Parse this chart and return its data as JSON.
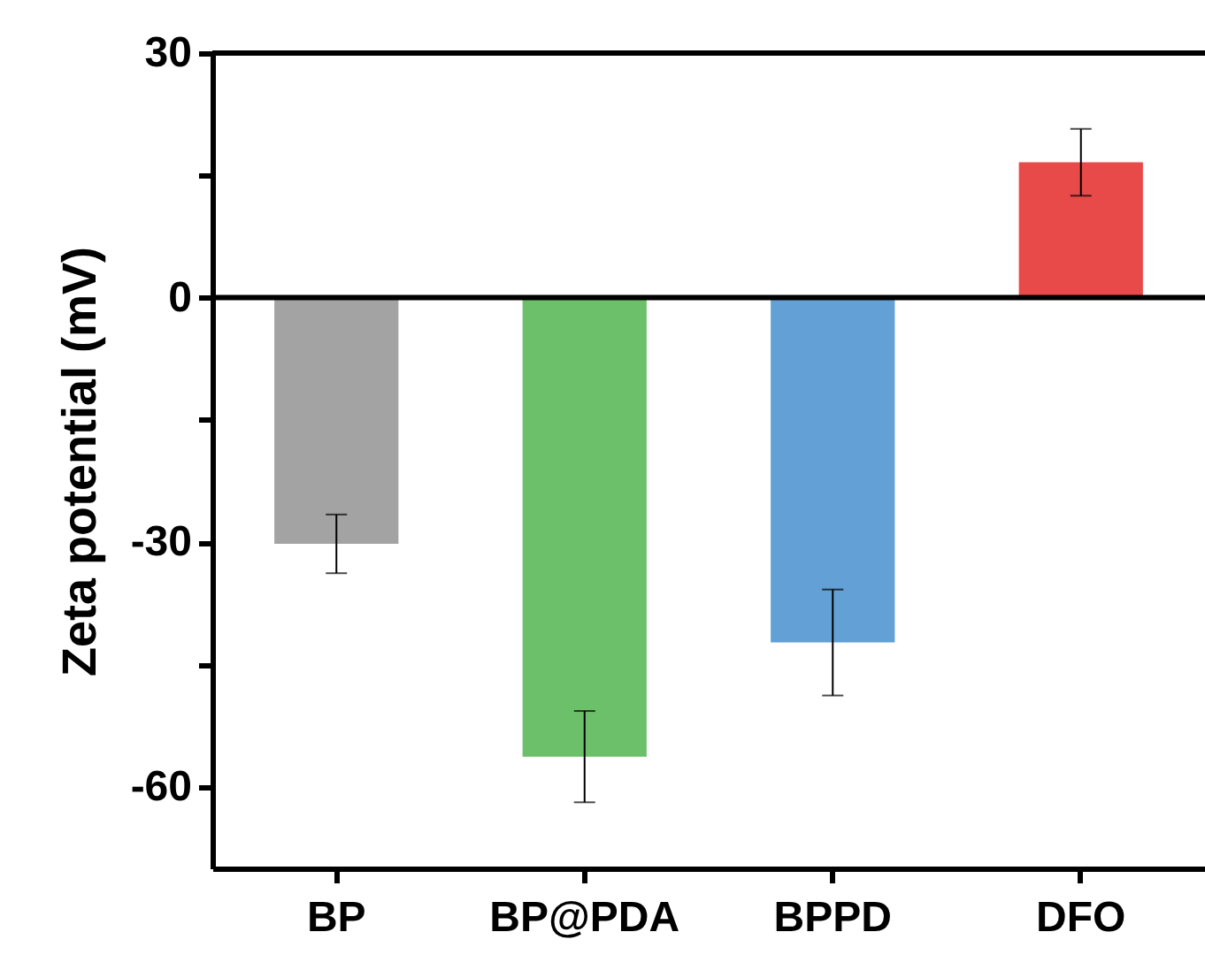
{
  "chart_data": {
    "type": "bar",
    "ylabel": "Zeta potential (mV)",
    "categories": [
      "BP",
      "BP@PDA",
      "BPPD",
      "DFO"
    ],
    "values": [
      -30.2,
      -56.3,
      -42.3,
      16.6
    ],
    "colors": [
      "#a3a3a3",
      "#6cc06a",
      "#62a0d6",
      "#e84a4a"
    ],
    "errors": [
      3.6,
      5.6,
      6.5,
      4.1
    ],
    "ylim": [
      -70,
      30
    ],
    "yticks": [
      {
        "value": -60,
        "label": "-60"
      },
      {
        "value": -45,
        "label": null
      },
      {
        "value": -30,
        "label": "-30"
      },
      {
        "value": -15,
        "label": null
      },
      0,
      {
        "value": 15,
        "label": null
      },
      30
    ],
    "ref_lines": [
      {
        "axis": "y",
        "value": 0
      }
    ],
    "grid": false
  }
}
